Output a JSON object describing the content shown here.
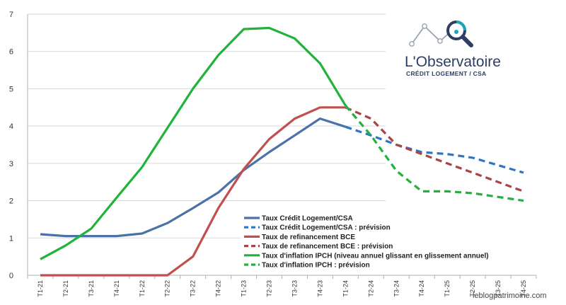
{
  "chart_data": {
    "type": "line",
    "title": "",
    "xlabel": "",
    "ylabel": "",
    "ylim": [
      0,
      7
    ],
    "yticks": [
      0,
      1,
      2,
      3,
      4,
      5,
      6,
      7
    ],
    "grid": "horizontal",
    "legend_position": "bottom-center",
    "categories": [
      "T1-21",
      "T2-21",
      "T3-21",
      "T4-21",
      "T1-22",
      "T2-22",
      "T3-22",
      "T4-22",
      "T1-23",
      "T2-23",
      "T3-23",
      "T4-23",
      "T1-24",
      "T2-24",
      "T3-24",
      "T4-24",
      "T1-25",
      "T2-25",
      "T3-25",
      "T4-25"
    ],
    "series": [
      {
        "name": "Taux Crédit Logement/CSA",
        "color": "#4a72a8",
        "dash": false,
        "values": [
          1.1,
          1.05,
          1.05,
          1.05,
          1.12,
          1.4,
          1.8,
          2.22,
          2.82,
          3.3,
          3.75,
          4.2,
          3.98,
          null,
          null,
          null,
          null,
          null,
          null,
          null
        ]
      },
      {
        "name": "Taux Crédit Logement/CSA : prévision",
        "color": "#2e75c8",
        "dash": true,
        "values": [
          null,
          null,
          null,
          null,
          null,
          null,
          null,
          null,
          null,
          null,
          null,
          null,
          3.98,
          3.75,
          3.5,
          3.3,
          3.25,
          3.15,
          2.95,
          2.75
        ]
      },
      {
        "name": "Taux de refinancement BCE",
        "color": "#c0504d",
        "dash": false,
        "values": [
          0,
          0,
          0,
          0,
          0,
          0,
          0.5,
          1.8,
          2.85,
          3.65,
          4.2,
          4.5,
          4.5,
          null,
          null,
          null,
          null,
          null,
          null,
          null
        ]
      },
      {
        "name": "Taux de refinancement BCE : prévision",
        "color": "#a94444",
        "dash": true,
        "values": [
          null,
          null,
          null,
          null,
          null,
          null,
          null,
          null,
          null,
          null,
          null,
          null,
          4.5,
          4.2,
          3.5,
          3.25,
          3.0,
          2.75,
          2.5,
          2.25
        ]
      },
      {
        "name": "Taux d'inflation IPCH (niveau annuel glissant en glissement annuel)",
        "color": "#1fb33c",
        "dash": false,
        "values": [
          0.43,
          0.8,
          1.25,
          2.08,
          2.9,
          3.95,
          5.0,
          5.9,
          6.6,
          6.63,
          6.35,
          5.68,
          4.55,
          null,
          null,
          null,
          null,
          null,
          null,
          null
        ]
      },
      {
        "name": "Taux d'inflation IPCH : prévision",
        "color": "#1fb33c",
        "dash": true,
        "values": [
          null,
          null,
          null,
          null,
          null,
          null,
          null,
          null,
          null,
          null,
          null,
          null,
          4.55,
          3.75,
          2.8,
          2.25,
          2.25,
          2.2,
          2.1,
          2.0
        ]
      }
    ]
  },
  "logo": {
    "title": "L'Observatoire",
    "subtitle": "CRÉDIT LOGEMENT / CSA",
    "icon": "magnifier-chart-icon"
  },
  "watermark": "leblogpatrimoine.com"
}
